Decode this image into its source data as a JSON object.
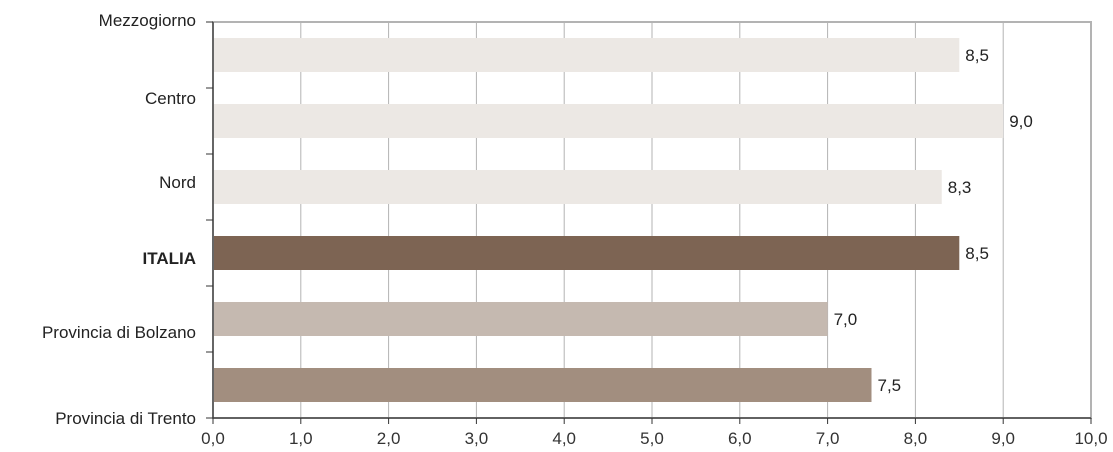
{
  "chart_data": {
    "type": "bar",
    "orientation": "horizontal",
    "categories": [
      "Mezzogiorno",
      "Centro",
      "Nord",
      "ITALIA",
      "Provincia di Bolzano",
      "Provincia di Trento"
    ],
    "values": [
      8.5,
      9.0,
      8.3,
      8.5,
      7.0,
      7.5
    ],
    "value_labels": [
      "8,5",
      "9,0",
      "8,3",
      "8,5",
      "7,0",
      "7,5"
    ],
    "bar_colors": [
      "#ece8e4",
      "#ece8e4",
      "#ece8e4",
      "#7d6453",
      "#c5b9b0",
      "#a28e7f"
    ],
    "bold_categories": [
      "ITALIA"
    ],
    "xlim": [
      0,
      10
    ],
    "x_ticks": [
      "0,0",
      "1,0",
      "2,0",
      "3,0",
      "4,0",
      "5,0",
      "6,0",
      "7,0",
      "8,0",
      "9,0",
      "10,0"
    ],
    "grid": true,
    "title": "",
    "xlabel": "",
    "ylabel": ""
  }
}
